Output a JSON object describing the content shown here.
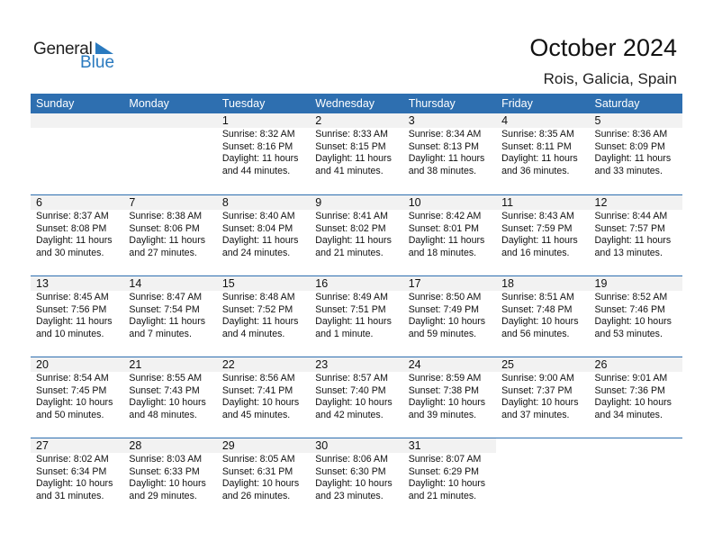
{
  "logo": {
    "general": "General",
    "blue": "Blue"
  },
  "title": "October 2024",
  "location": "Rois, Galicia, Spain",
  "colors": {
    "header": "#2e6fb0",
    "date_row": "#f2f2f2",
    "logo_blue": "#2a7abf"
  },
  "weekdays": [
    "Sunday",
    "Monday",
    "Tuesday",
    "Wednesday",
    "Thursday",
    "Friday",
    "Saturday"
  ],
  "weeks": [
    [
      null,
      null,
      {
        "day": "1",
        "sunrise": "Sunrise: 8:32 AM",
        "sunset": "Sunset: 8:16 PM",
        "daylight1": "Daylight: 11 hours",
        "daylight2": "and 44 minutes."
      },
      {
        "day": "2",
        "sunrise": "Sunrise: 8:33 AM",
        "sunset": "Sunset: 8:15 PM",
        "daylight1": "Daylight: 11 hours",
        "daylight2": "and 41 minutes."
      },
      {
        "day": "3",
        "sunrise": "Sunrise: 8:34 AM",
        "sunset": "Sunset: 8:13 PM",
        "daylight1": "Daylight: 11 hours",
        "daylight2": "and 38 minutes."
      },
      {
        "day": "4",
        "sunrise": "Sunrise: 8:35 AM",
        "sunset": "Sunset: 8:11 PM",
        "daylight1": "Daylight: 11 hours",
        "daylight2": "and 36 minutes."
      },
      {
        "day": "5",
        "sunrise": "Sunrise: 8:36 AM",
        "sunset": "Sunset: 8:09 PM",
        "daylight1": "Daylight: 11 hours",
        "daylight2": "and 33 minutes."
      }
    ],
    [
      {
        "day": "6",
        "sunrise": "Sunrise: 8:37 AM",
        "sunset": "Sunset: 8:08 PM",
        "daylight1": "Daylight: 11 hours",
        "daylight2": "and 30 minutes."
      },
      {
        "day": "7",
        "sunrise": "Sunrise: 8:38 AM",
        "sunset": "Sunset: 8:06 PM",
        "daylight1": "Daylight: 11 hours",
        "daylight2": "and 27 minutes."
      },
      {
        "day": "8",
        "sunrise": "Sunrise: 8:40 AM",
        "sunset": "Sunset: 8:04 PM",
        "daylight1": "Daylight: 11 hours",
        "daylight2": "and 24 minutes."
      },
      {
        "day": "9",
        "sunrise": "Sunrise: 8:41 AM",
        "sunset": "Sunset: 8:02 PM",
        "daylight1": "Daylight: 11 hours",
        "daylight2": "and 21 minutes."
      },
      {
        "day": "10",
        "sunrise": "Sunrise: 8:42 AM",
        "sunset": "Sunset: 8:01 PM",
        "daylight1": "Daylight: 11 hours",
        "daylight2": "and 18 minutes."
      },
      {
        "day": "11",
        "sunrise": "Sunrise: 8:43 AM",
        "sunset": "Sunset: 7:59 PM",
        "daylight1": "Daylight: 11 hours",
        "daylight2": "and 16 minutes."
      },
      {
        "day": "12",
        "sunrise": "Sunrise: 8:44 AM",
        "sunset": "Sunset: 7:57 PM",
        "daylight1": "Daylight: 11 hours",
        "daylight2": "and 13 minutes."
      }
    ],
    [
      {
        "day": "13",
        "sunrise": "Sunrise: 8:45 AM",
        "sunset": "Sunset: 7:56 PM",
        "daylight1": "Daylight: 11 hours",
        "daylight2": "and 10 minutes."
      },
      {
        "day": "14",
        "sunrise": "Sunrise: 8:47 AM",
        "sunset": "Sunset: 7:54 PM",
        "daylight1": "Daylight: 11 hours",
        "daylight2": "and 7 minutes."
      },
      {
        "day": "15",
        "sunrise": "Sunrise: 8:48 AM",
        "sunset": "Sunset: 7:52 PM",
        "daylight1": "Daylight: 11 hours",
        "daylight2": "and 4 minutes."
      },
      {
        "day": "16",
        "sunrise": "Sunrise: 8:49 AM",
        "sunset": "Sunset: 7:51 PM",
        "daylight1": "Daylight: 11 hours",
        "daylight2": "and 1 minute."
      },
      {
        "day": "17",
        "sunrise": "Sunrise: 8:50 AM",
        "sunset": "Sunset: 7:49 PM",
        "daylight1": "Daylight: 10 hours",
        "daylight2": "and 59 minutes."
      },
      {
        "day": "18",
        "sunrise": "Sunrise: 8:51 AM",
        "sunset": "Sunset: 7:48 PM",
        "daylight1": "Daylight: 10 hours",
        "daylight2": "and 56 minutes."
      },
      {
        "day": "19",
        "sunrise": "Sunrise: 8:52 AM",
        "sunset": "Sunset: 7:46 PM",
        "daylight1": "Daylight: 10 hours",
        "daylight2": "and 53 minutes."
      }
    ],
    [
      {
        "day": "20",
        "sunrise": "Sunrise: 8:54 AM",
        "sunset": "Sunset: 7:45 PM",
        "daylight1": "Daylight: 10 hours",
        "daylight2": "and 50 minutes."
      },
      {
        "day": "21",
        "sunrise": "Sunrise: 8:55 AM",
        "sunset": "Sunset: 7:43 PM",
        "daylight1": "Daylight: 10 hours",
        "daylight2": "and 48 minutes."
      },
      {
        "day": "22",
        "sunrise": "Sunrise: 8:56 AM",
        "sunset": "Sunset: 7:41 PM",
        "daylight1": "Daylight: 10 hours",
        "daylight2": "and 45 minutes."
      },
      {
        "day": "23",
        "sunrise": "Sunrise: 8:57 AM",
        "sunset": "Sunset: 7:40 PM",
        "daylight1": "Daylight: 10 hours",
        "daylight2": "and 42 minutes."
      },
      {
        "day": "24",
        "sunrise": "Sunrise: 8:59 AM",
        "sunset": "Sunset: 7:38 PM",
        "daylight1": "Daylight: 10 hours",
        "daylight2": "and 39 minutes."
      },
      {
        "day": "25",
        "sunrise": "Sunrise: 9:00 AM",
        "sunset": "Sunset: 7:37 PM",
        "daylight1": "Daylight: 10 hours",
        "daylight2": "and 37 minutes."
      },
      {
        "day": "26",
        "sunrise": "Sunrise: 9:01 AM",
        "sunset": "Sunset: 7:36 PM",
        "daylight1": "Daylight: 10 hours",
        "daylight2": "and 34 minutes."
      }
    ],
    [
      {
        "day": "27",
        "sunrise": "Sunrise: 8:02 AM",
        "sunset": "Sunset: 6:34 PM",
        "daylight1": "Daylight: 10 hours",
        "daylight2": "and 31 minutes."
      },
      {
        "day": "28",
        "sunrise": "Sunrise: 8:03 AM",
        "sunset": "Sunset: 6:33 PM",
        "daylight1": "Daylight: 10 hours",
        "daylight2": "and 29 minutes."
      },
      {
        "day": "29",
        "sunrise": "Sunrise: 8:05 AM",
        "sunset": "Sunset: 6:31 PM",
        "daylight1": "Daylight: 10 hours",
        "daylight2": "and 26 minutes."
      },
      {
        "day": "30",
        "sunrise": "Sunrise: 8:06 AM",
        "sunset": "Sunset: 6:30 PM",
        "daylight1": "Daylight: 10 hours",
        "daylight2": "and 23 minutes."
      },
      {
        "day": "31",
        "sunrise": "Sunrise: 8:07 AM",
        "sunset": "Sunset: 6:29 PM",
        "daylight1": "Daylight: 10 hours",
        "daylight2": "and 21 minutes."
      },
      null,
      null
    ]
  ]
}
